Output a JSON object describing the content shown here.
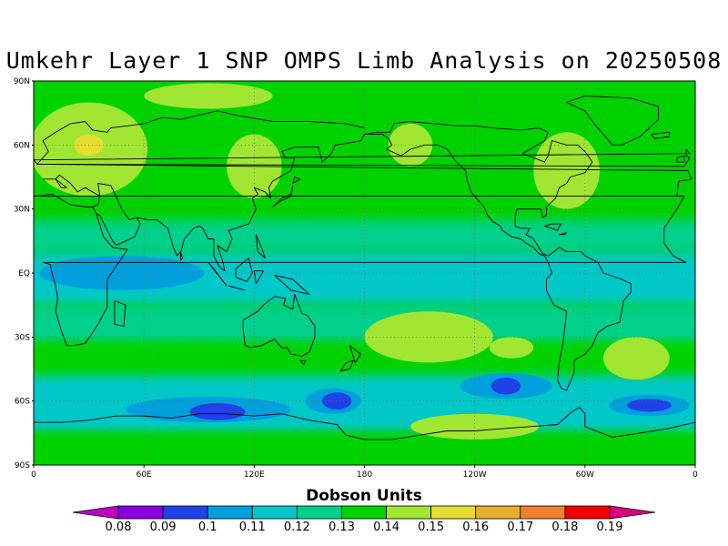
{
  "title": "Umkehr Layer 1 SNP OMPS Limb Analysis on 20250508",
  "lat_ticks": [
    "90N",
    "60N",
    "30N",
    "EQ",
    "30S",
    "60S",
    "90S"
  ],
  "lon_ticks": [
    "0",
    "60E",
    "120E",
    "180",
    "120W",
    "60W",
    "0"
  ],
  "colorbar": {
    "title": "Dobson Units",
    "labels": [
      "0.08",
      "0.09",
      "0.1",
      "0.11",
      "0.12",
      "0.13",
      "0.14",
      "0.15",
      "0.16",
      "0.17",
      "0.18",
      "0.19"
    ],
    "colors": [
      "#c000c0",
      "#8a00dc",
      "#2040e8",
      "#00a0dc",
      "#00c8c8",
      "#00d08c",
      "#00d200",
      "#a0e632",
      "#e6dc32",
      "#e6af2d",
      "#f0822d",
      "#f00000",
      "#dc0082"
    ]
  },
  "map_bands": [
    {
      "lat_from": 90,
      "lat_to": 72,
      "color": "#00d200"
    },
    {
      "lat_from": 72,
      "lat_to": 25,
      "color": "#00d200"
    },
    {
      "lat_from": 25,
      "lat_to": 10,
      "color": "#00d08c"
    },
    {
      "lat_from": 10,
      "lat_to": -15,
      "color": "#00c8c8"
    },
    {
      "lat_from": -15,
      "lat_to": -33,
      "color": "#00d08c"
    },
    {
      "lat_from": -33,
      "lat_to": -48,
      "color": "#00d200"
    },
    {
      "lat_from": -48,
      "lat_to": -75,
      "color": "#00c8c8"
    },
    {
      "lat_from": -75,
      "lat_to": -90,
      "color": "#00d200"
    }
  ],
  "map_blobs": [
    {
      "lon": 30,
      "lat": 58,
      "rlon": 32,
      "rlat": 22,
      "color": "#a0e632"
    },
    {
      "lon": 30,
      "lat": 60,
      "rlon": 8,
      "rlat": 5,
      "color": "#e6dc32"
    },
    {
      "lon": 95,
      "lat": 83,
      "rlon": 35,
      "rlat": 6,
      "color": "#a0e632"
    },
    {
      "lon": 120,
      "lat": 50,
      "rlon": 15,
      "rlat": 15,
      "color": "#a0e632"
    },
    {
      "lon": 205,
      "lat": 60,
      "rlon": 12,
      "rlat": 10,
      "color": "#a0e632"
    },
    {
      "lon": 290,
      "lat": 48,
      "rlon": 18,
      "rlat": 18,
      "color": "#a0e632"
    },
    {
      "lon": 48,
      "lat": 0,
      "rlon": 45,
      "rlat": 8,
      "color": "#00a0dc"
    },
    {
      "lon": 215,
      "lat": -30,
      "rlon": 35,
      "rlat": 12,
      "color": "#a0e632"
    },
    {
      "lon": 260,
      "lat": -35,
      "rlon": 12,
      "rlat": 5,
      "color": "#a0e632"
    },
    {
      "lon": 328,
      "lat": -40,
      "rlon": 18,
      "rlat": 10,
      "color": "#a0e632"
    },
    {
      "lon": 95,
      "lat": -64,
      "rlon": 45,
      "rlat": 6,
      "color": "#00a0dc"
    },
    {
      "lon": 100,
      "lat": -65,
      "rlon": 15,
      "rlat": 4,
      "color": "#2040e8"
    },
    {
      "lon": 163,
      "lat": -60,
      "rlon": 15,
      "rlat": 6,
      "color": "#00a0dc"
    },
    {
      "lon": 165,
      "lat": -60,
      "rlon": 8,
      "rlat": 4,
      "color": "#2040e8"
    },
    {
      "lon": 257,
      "lat": -53,
      "rlon": 25,
      "rlat": 6,
      "color": "#00a0dc"
    },
    {
      "lon": 257,
      "lat": -53,
      "rlon": 8,
      "rlat": 4,
      "color": "#2040e8"
    },
    {
      "lon": 335,
      "lat": -62,
      "rlon": 22,
      "rlat": 5,
      "color": "#00a0dc"
    },
    {
      "lon": 335,
      "lat": -62,
      "rlon": 12,
      "rlat": 3,
      "color": "#2040e8"
    },
    {
      "lon": 240,
      "lat": -72,
      "rlon": 35,
      "rlat": 6,
      "color": "#a0e632"
    }
  ],
  "coastlines": [
    [
      [
        -10,
        36
      ],
      [
        -9,
        43
      ],
      [
        -2,
        44
      ],
      [
        -4,
        48
      ],
      [
        2,
        51
      ],
      [
        5,
        54
      ],
      [
        8,
        57
      ],
      [
        5,
        62
      ],
      [
        12,
        66
      ],
      [
        20,
        70
      ],
      [
        28,
        71
      ],
      [
        32,
        67
      ],
      [
        40,
        66
      ],
      [
        42,
        68
      ],
      [
        60,
        70
      ],
      [
        70,
        73
      ],
      [
        80,
        72
      ],
      [
        100,
        76
      ],
      [
        110,
        74
      ],
      [
        130,
        71
      ],
      [
        150,
        71
      ],
      [
        170,
        70
      ],
      [
        180,
        68
      ]
    ],
    [
      [
        5,
        44
      ],
      [
        12,
        44
      ],
      [
        15,
        40
      ],
      [
        18,
        40
      ],
      [
        12,
        44
      ],
      [
        14,
        46
      ],
      [
        20,
        42
      ],
      [
        24,
        38
      ],
      [
        28,
        40
      ],
      [
        36,
        36
      ],
      [
        35,
        32
      ],
      [
        32,
        31
      ],
      [
        28,
        31
      ],
      [
        20,
        32
      ],
      [
        10,
        37
      ],
      [
        0,
        36
      ],
      [
        -6,
        36
      ]
    ],
    [
      [
        -6,
        36
      ],
      [
        -10,
        30
      ],
      [
        -17,
        21
      ],
      [
        -17,
        14
      ],
      [
        -12,
        8
      ],
      [
        -5,
        5
      ],
      [
        5,
        5
      ],
      [
        9,
        4
      ],
      [
        10,
        0
      ],
      [
        12,
        -6
      ],
      [
        13,
        -12
      ],
      [
        12,
        -18
      ],
      [
        15,
        -27
      ],
      [
        18,
        -34
      ],
      [
        22,
        -34
      ],
      [
        28,
        -33
      ],
      [
        32,
        -28
      ],
      [
        35,
        -24
      ],
      [
        40,
        -16
      ],
      [
        40,
        -10
      ],
      [
        40,
        -3
      ],
      [
        44,
        2
      ],
      [
        51,
        11
      ],
      [
        43,
        12
      ],
      [
        38,
        17
      ],
      [
        34,
        28
      ],
      [
        32,
        31
      ]
    ],
    [
      [
        36,
        36
      ],
      [
        35,
        42
      ],
      [
        42,
        41
      ],
      [
        48,
        30
      ],
      [
        52,
        25
      ],
      [
        56,
        26
      ],
      [
        58,
        23
      ],
      [
        55,
        17
      ],
      [
        50,
        15
      ],
      [
        45,
        13
      ],
      [
        43,
        15
      ],
      [
        40,
        20
      ],
      [
        36,
        27
      ],
      [
        34,
        28
      ]
    ],
    [
      [
        56,
        26
      ],
      [
        62,
        25
      ],
      [
        67,
        25
      ],
      [
        73,
        21
      ],
      [
        76,
        12
      ],
      [
        78,
        8
      ],
      [
        80,
        10
      ],
      [
        82,
        16
      ],
      [
        87,
        21
      ],
      [
        90,
        22
      ],
      [
        92,
        21
      ],
      [
        95,
        16
      ],
      [
        98,
        16
      ],
      [
        98,
        8
      ],
      [
        101,
        3
      ],
      [
        104,
        1
      ],
      [
        103,
        5
      ],
      [
        100,
        13
      ],
      [
        105,
        10
      ],
      [
        108,
        16
      ],
      [
        106,
        20
      ],
      [
        110,
        21
      ],
      [
        117,
        23
      ],
      [
        121,
        30
      ],
      [
        119,
        35
      ],
      [
        122,
        37
      ],
      [
        120,
        40
      ],
      [
        126,
        38
      ],
      [
        129,
        35
      ],
      [
        128,
        40
      ],
      [
        130,
        43
      ],
      [
        140,
        48
      ],
      [
        142,
        54
      ],
      [
        137,
        54
      ],
      [
        135,
        57
      ],
      [
        142,
        59
      ],
      [
        155,
        59
      ],
      [
        157,
        52
      ],
      [
        162,
        56
      ],
      [
        164,
        60
      ],
      [
        172,
        61
      ],
      [
        178,
        62
      ],
      [
        180,
        65
      ]
    ],
    [
      [
        44,
        -13
      ],
      [
        50,
        -15
      ],
      [
        49,
        -25
      ],
      [
        44,
        -24
      ],
      [
        44,
        -13
      ]
    ],
    [
      [
        80,
        10
      ],
      [
        81,
        7
      ],
      [
        80,
        6
      ],
      [
        80,
        10
      ]
    ],
    [
      [
        95,
        5
      ],
      [
        105,
        -6
      ],
      [
        98,
        2
      ],
      [
        95,
        5
      ]
    ],
    [
      [
        106,
        -6
      ],
      [
        115,
        -8
      ],
      [
        106,
        -6
      ]
    ],
    [
      [
        110,
        2
      ],
      [
        117,
        7
      ],
      [
        119,
        0
      ],
      [
        116,
        -4
      ],
      [
        110,
        -2
      ],
      [
        110,
        2
      ]
    ],
    [
      [
        120,
        1
      ],
      [
        125,
        1
      ],
      [
        121,
        -5
      ],
      [
        120,
        1
      ]
    ],
    [
      [
        131,
        -1
      ],
      [
        141,
        -3
      ],
      [
        150,
        -10
      ],
      [
        140,
        -8
      ],
      [
        131,
        -1
      ]
    ],
    [
      [
        121,
        18
      ],
      [
        124,
        12
      ],
      [
        126,
        7
      ],
      [
        122,
        10
      ],
      [
        121,
        18
      ]
    ],
    [
      [
        130,
        31
      ],
      [
        135,
        34
      ],
      [
        140,
        36
      ],
      [
        141,
        41
      ],
      [
        140,
        37
      ],
      [
        135,
        35
      ],
      [
        130,
        31
      ]
    ],
    [
      [
        141,
        42
      ],
      [
        145,
        44
      ],
      [
        142,
        45
      ],
      [
        141,
        42
      ]
    ],
    [
      [
        114,
        -22
      ],
      [
        114,
        -26
      ],
      [
        115,
        -34
      ],
      [
        118,
        -35
      ],
      [
        124,
        -34
      ],
      [
        131,
        -31
      ],
      [
        135,
        -35
      ],
      [
        138,
        -35
      ],
      [
        140,
        -38
      ],
      [
        146,
        -39
      ],
      [
        150,
        -37
      ],
      [
        153,
        -30
      ],
      [
        153,
        -25
      ],
      [
        149,
        -20
      ],
      [
        146,
        -19
      ],
      [
        142,
        -10
      ],
      [
        141,
        -17
      ],
      [
        136,
        -15
      ],
      [
        137,
        -12
      ],
      [
        131,
        -11
      ],
      [
        125,
        -15
      ],
      [
        122,
        -18
      ],
      [
        114,
        -22
      ]
    ],
    [
      [
        145,
        -41
      ],
      [
        148,
        -41
      ],
      [
        147,
        -43
      ],
      [
        145,
        -41
      ]
    ],
    [
      [
        172,
        -34
      ],
      [
        178,
        -38
      ],
      [
        175,
        -42
      ],
      [
        172,
        -34
      ]
    ],
    [
      [
        174,
        -41
      ],
      [
        172,
        -45
      ],
      [
        167,
        -46
      ],
      [
        170,
        -42
      ],
      [
        174,
        -41
      ]
    ],
    [
      [
        180,
        65
      ],
      [
        187,
        66
      ],
      [
        194,
        66
      ],
      [
        196,
        70
      ],
      [
        204,
        71
      ],
      [
        218,
        70
      ],
      [
        230,
        69
      ],
      [
        240,
        69
      ],
      [
        250,
        68
      ],
      [
        265,
        67
      ],
      [
        275,
        68
      ],
      [
        280,
        66
      ],
      [
        278,
        62
      ],
      [
        270,
        58
      ],
      [
        266,
        56
      ],
      [
        278,
        52
      ],
      [
        280,
        55
      ],
      [
        282,
        62
      ],
      [
        290,
        60
      ],
      [
        296,
        60
      ],
      [
        300,
        57
      ],
      [
        304,
        52
      ],
      [
        300,
        47
      ],
      [
        292,
        45
      ],
      [
        290,
        42
      ],
      [
        286,
        40
      ],
      [
        284,
        35
      ],
      [
        279,
        31
      ],
      [
        279,
        27
      ],
      [
        277,
        26
      ],
      [
        276,
        30
      ],
      [
        270,
        30
      ],
      [
        263,
        30
      ],
      [
        262,
        26
      ],
      [
        262,
        22
      ],
      [
        265,
        21
      ],
      [
        270,
        21
      ],
      [
        268,
        18
      ],
      [
        272,
        16
      ],
      [
        277,
        9
      ],
      [
        280,
        8
      ],
      [
        283,
        10
      ],
      [
        286,
        12
      ],
      [
        290,
        10
      ],
      [
        298,
        10
      ],
      [
        300,
        8
      ],
      [
        307,
        5
      ],
      [
        310,
        0
      ],
      [
        320,
        -3
      ],
      [
        325,
        -5
      ],
      [
        325,
        -9
      ],
      [
        321,
        -13
      ],
      [
        319,
        -23
      ],
      [
        312,
        -25
      ],
      [
        307,
        -28
      ],
      [
        304,
        -34
      ],
      [
        300,
        -38
      ],
      [
        294,
        -41
      ],
      [
        294,
        -47
      ],
      [
        292,
        -51
      ],
      [
        290,
        -55
      ],
      [
        287,
        -54
      ],
      [
        285,
        -50
      ],
      [
        286,
        -42
      ],
      [
        288,
        -33
      ],
      [
        290,
        -18
      ],
      [
        283,
        -15
      ],
      [
        279,
        -8
      ],
      [
        279,
        -3
      ],
      [
        282,
        0
      ],
      [
        280,
        5
      ],
      [
        278,
        8
      ],
      [
        275,
        9
      ],
      [
        272,
        12
      ],
      [
        268,
        14
      ],
      [
        265,
        16
      ],
      [
        260,
        17
      ],
      [
        255,
        20
      ],
      [
        254,
        22
      ],
      [
        250,
        24
      ],
      [
        247,
        27
      ],
      [
        245,
        31
      ],
      [
        242,
        34
      ],
      [
        238,
        38
      ],
      [
        236,
        43
      ],
      [
        235,
        48
      ],
      [
        230,
        52
      ],
      [
        225,
        58
      ],
      [
        220,
        60
      ],
      [
        213,
        60
      ],
      [
        205,
        58
      ],
      [
        200,
        55
      ],
      [
        197,
        56
      ],
      [
        192,
        58
      ],
      [
        195,
        60
      ],
      [
        193,
        63
      ],
      [
        190,
        65
      ],
      [
        180,
        65
      ]
    ],
    [
      [
        287,
        23
      ],
      [
        282,
        23
      ],
      [
        278,
        22
      ],
      [
        285,
        20
      ],
      [
        287,
        23
      ]
    ],
    [
      [
        290,
        19
      ],
      [
        286,
        18
      ],
      [
        289,
        18
      ],
      [
        290,
        19
      ]
    ],
    [
      [
        315,
        60
      ],
      [
        320,
        60
      ],
      [
        330,
        64
      ],
      [
        335,
        68
      ],
      [
        340,
        72
      ],
      [
        340,
        78
      ],
      [
        325,
        82
      ],
      [
        300,
        83
      ],
      [
        290,
        80
      ],
      [
        300,
        76
      ],
      [
        305,
        70
      ],
      [
        310,
        65
      ],
      [
        315,
        60
      ]
    ],
    [
      [
        -24,
        65
      ],
      [
        -14,
        66
      ],
      [
        -14,
        64
      ],
      [
        -22,
        63
      ],
      [
        -24,
        65
      ]
    ],
    [
      [
        -6,
        50
      ],
      [
        2,
        51
      ],
      [
        0,
        53
      ],
      [
        -3,
        56
      ],
      [
        -5,
        58
      ],
      [
        -5,
        55
      ],
      [
        -3,
        54
      ],
      [
        -6,
        50
      ]
    ],
    [
      [
        -10,
        52
      ],
      [
        -6,
        52
      ],
      [
        -6,
        55
      ],
      [
        -10,
        54
      ],
      [
        -10,
        52
      ]
    ],
    [
      [
        0,
        -90
      ],
      [
        0,
        -70
      ],
      [
        15,
        -70
      ],
      [
        30,
        -69
      ],
      [
        45,
        -67
      ],
      [
        60,
        -67
      ],
      [
        75,
        -68
      ],
      [
        90,
        -66
      ],
      [
        105,
        -66
      ],
      [
        120,
        -67
      ],
      [
        135,
        -66
      ],
      [
        150,
        -69
      ],
      [
        165,
        -71
      ],
      [
        170,
        -76
      ],
      [
        180,
        -78
      ],
      [
        195,
        -78
      ],
      [
        210,
        -76
      ],
      [
        225,
        -74
      ],
      [
        240,
        -74
      ],
      [
        255,
        -73
      ],
      [
        270,
        -72
      ],
      [
        285,
        -71
      ],
      [
        293,
        -65
      ],
      [
        297,
        -63
      ],
      [
        300,
        -66
      ],
      [
        300,
        -72
      ],
      [
        315,
        -77
      ],
      [
        330,
        -75
      ],
      [
        345,
        -73
      ],
      [
        360,
        -70
      ]
    ]
  ]
}
